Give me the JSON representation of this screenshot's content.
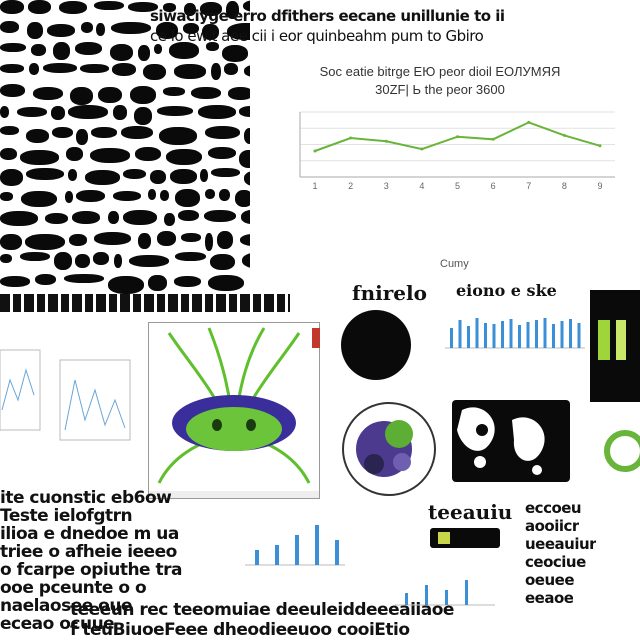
{
  "header": {
    "lines": [
      "siwaciyge erro dfithers eecane unillunie to ii",
      "ce lo ewit aee cii i eor quinbeahm pum to Gbiro"
    ]
  },
  "main_chart": {
    "title_line1": "Soc eatie bitrge ЕЮ peor dioil ЕОЛУМЯЯ",
    "title_line2": "30ZF| Ь the peor 3600",
    "caption": "Cumy"
  },
  "labels": {
    "center_left": "fnirelo",
    "center_right": "eiono e ske",
    "bottom_small": "teeauiu"
  },
  "left_text": {
    "lines": [
      "ite cuonstic eb6ow",
      "Teste ielofgtrn",
      "ilioa e dnedoe m ua",
      "triee o afheie ieeeo",
      "o fcarpe opiuthe tra",
      "ooe pceunte o o",
      "naelaosee oue",
      "eceao ocuue"
    ]
  },
  "right_text": {
    "lines": [
      "eccoeu",
      "aooiicr",
      "ueeauiur",
      "ceociue",
      "oeuee",
      "eeaoe"
    ]
  },
  "footer": {
    "lines": [
      "teeeun rec teeomuiae deeuleiddeeeaiiaoe",
      "f teuBiuoeFeee dheodieeuoo cooiEtio"
    ]
  },
  "chart_data": {
    "type": "line",
    "categories": [
      "1",
      "2",
      "3",
      "4",
      "5",
      "6",
      "7",
      "8",
      "9"
    ],
    "series": [
      {
        "values": [
          4,
          6,
          5.5,
          4.3,
          6.2,
          5.8,
          8.4,
          6.4,
          4.8
        ]
      }
    ],
    "ylim": [
      0,
      10
    ]
  },
  "colors": {
    "accent_green": "#69b43a",
    "accent_blue": "#3b8fd6",
    "ink": "#0a0a0a"
  }
}
